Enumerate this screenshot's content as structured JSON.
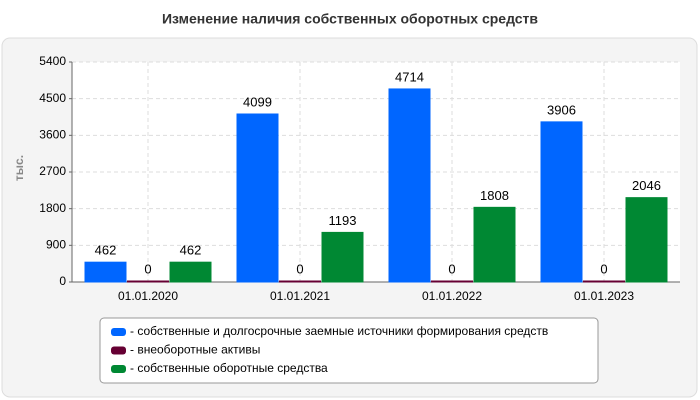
{
  "chart_data": {
    "type": "bar",
    "title": "Изменение наличия собственных оборотных средств",
    "y_label": "тыс.",
    "categories": [
      "01.01.2020",
      "01.01.2021",
      "01.01.2022",
      "01.01.2023"
    ],
    "series": [
      {
        "name": "- собственные и долгосрочные заемные источники формирования средств",
        "color": "#0066ff",
        "values": [
          462,
          4099,
          4714,
          3906
        ]
      },
      {
        "name": "- внеоборотные активы",
        "color": "#660033",
        "values": [
          0,
          0,
          0,
          0
        ]
      },
      {
        "name": "- собственные оборотные средства",
        "color": "#008833",
        "values": [
          462,
          1193,
          1808,
          2046
        ]
      }
    ],
    "ylim": [
      0,
      5400
    ],
    "yticks": [
      0,
      900,
      1800,
      2700,
      3600,
      4500,
      5400
    ],
    "grid": true
  }
}
